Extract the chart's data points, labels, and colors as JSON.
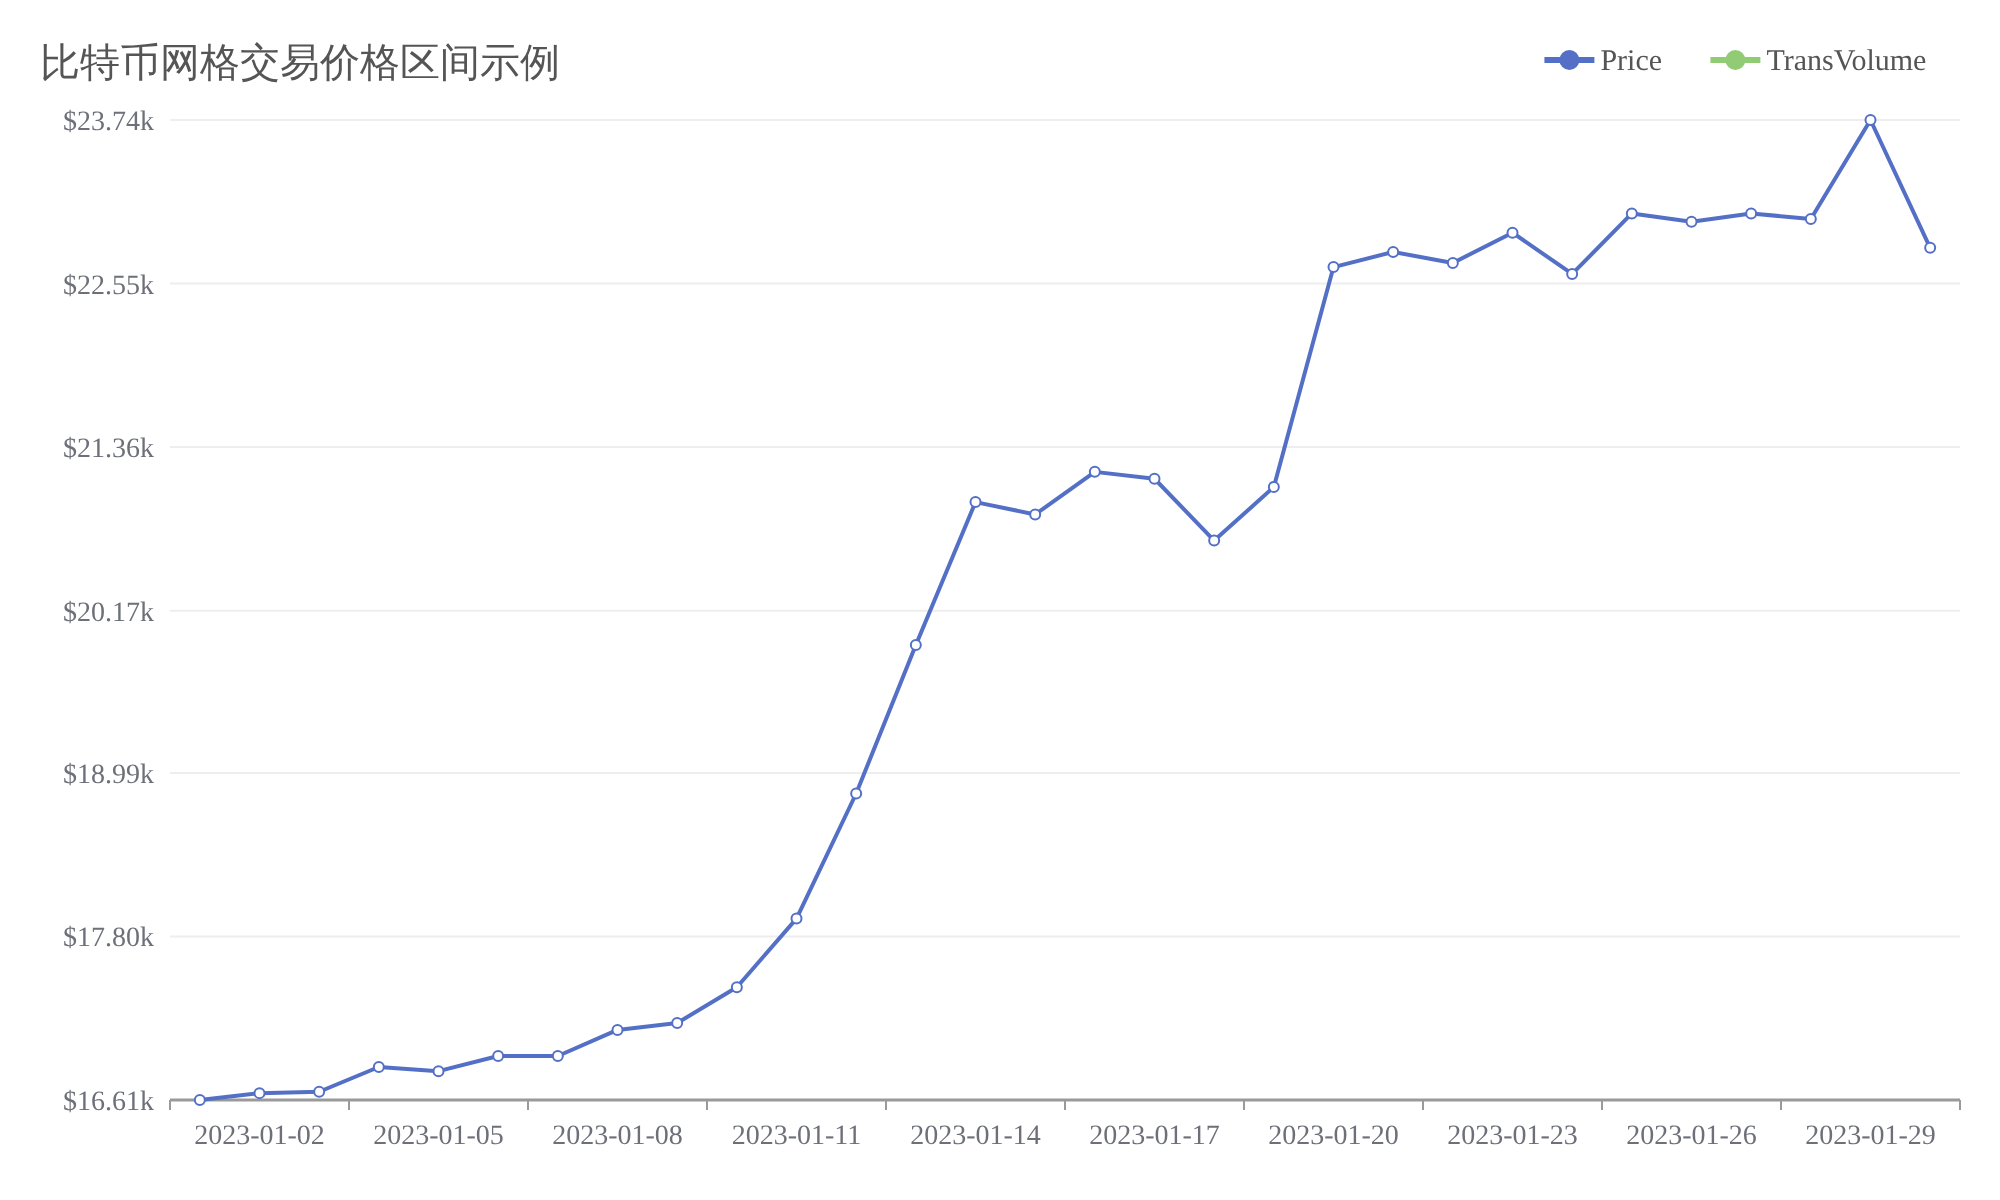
{
  "chart_data": {
    "type": "line",
    "title": "比特币网格交易价格区间示例",
    "categories": [
      null,
      "2023-01-02",
      null,
      null,
      "2023-01-05",
      null,
      null,
      "2023-01-08",
      null,
      null,
      "2023-01-11",
      null,
      null,
      "2023-01-14",
      null,
      null,
      "2023-01-17",
      null,
      null,
      "2023-01-20",
      null,
      null,
      "2023-01-23",
      null,
      null,
      "2023-01-26",
      null,
      null,
      "2023-01-29",
      null
    ],
    "series": [
      {
        "name": "Price",
        "color": "#5470c6",
        "values": [
          16.61,
          16.66,
          16.67,
          16.85,
          16.82,
          16.93,
          16.93,
          17.12,
          17.17,
          17.43,
          17.93,
          18.84,
          19.92,
          20.96,
          20.87,
          21.18,
          21.13,
          20.68,
          21.07,
          22.67,
          22.78,
          22.7,
          22.92,
          22.62,
          23.06,
          23.0,
          23.06,
          23.02,
          23.74,
          22.81
        ]
      },
      {
        "name": "TransVolume",
        "color": "#91cc75",
        "values": [
          null,
          null,
          null,
          null,
          null,
          null,
          null,
          null,
          null,
          null,
          null,
          null,
          null,
          null,
          null,
          null,
          null,
          null,
          null,
          null,
          null,
          null,
          null,
          null,
          null,
          null,
          null,
          null,
          null,
          null
        ]
      }
    ],
    "ylim": [
      16.61,
      23.74
    ],
    "yticks": [
      {
        "value": 16.61,
        "label": "$16.61k"
      },
      {
        "value": 17.8,
        "label": "$17.80k"
      },
      {
        "value": 18.99,
        "label": "$18.99k"
      },
      {
        "value": 20.17,
        "label": "$20.17k"
      },
      {
        "value": 21.36,
        "label": "$21.36k"
      },
      {
        "value": 22.55,
        "label": "$22.55k"
      },
      {
        "value": 23.74,
        "label": "$23.74k"
      }
    ],
    "grid": "y",
    "legend": "top right",
    "marker": "circle",
    "line_style": "solid"
  }
}
